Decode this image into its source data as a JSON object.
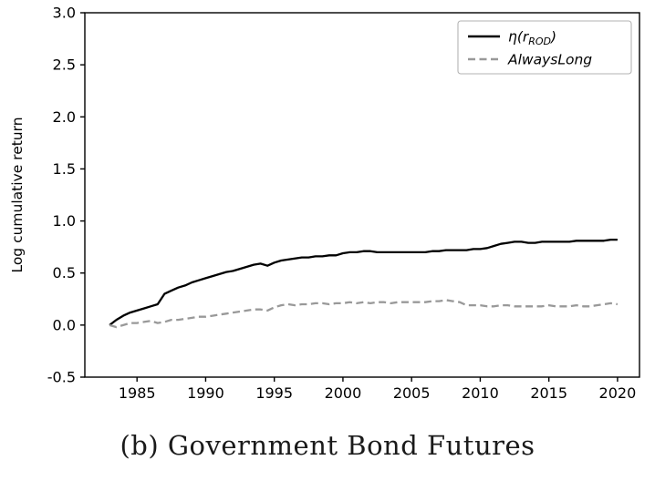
{
  "caption": "(b) Government Bond Futures",
  "chart_data": {
    "type": "line",
    "title": "",
    "xlabel": "",
    "ylabel": "Log cumulative return",
    "xlim": [
      1981.2,
      2021.6
    ],
    "ylim": [
      -0.5,
      3.0
    ],
    "x_ticks": [
      1985,
      1990,
      1995,
      2000,
      2005,
      2010,
      2015,
      2020
    ],
    "y_ticks": [
      -0.5,
      0.0,
      0.5,
      1.0,
      1.5,
      2.0,
      2.5,
      3.0
    ],
    "grid": false,
    "legend_position": "upper right",
    "frame_color": "#000000",
    "x": [
      1983,
      1983.5,
      1984,
      1984.5,
      1985,
      1985.5,
      1986,
      1986.5,
      1987,
      1987.5,
      1988,
      1988.5,
      1989,
      1989.5,
      1990,
      1990.5,
      1991,
      1991.5,
      1992,
      1992.5,
      1993,
      1993.5,
      1994,
      1994.5,
      1995,
      1995.5,
      1996,
      1996.5,
      1997,
      1997.5,
      1998,
      1998.5,
      1999,
      1999.5,
      2000,
      2000.5,
      2001,
      2001.5,
      2002,
      2002.5,
      2003,
      2003.5,
      2004,
      2004.5,
      2005,
      2005.5,
      2006,
      2006.5,
      2007,
      2007.5,
      2008,
      2008.5,
      2009,
      2009.5,
      2010,
      2010.5,
      2011,
      2011.5,
      2012,
      2012.5,
      2013,
      2013.5,
      2014,
      2014.5,
      2015,
      2015.5,
      2016,
      2016.5,
      2017,
      2017.5,
      2018,
      2018.5,
      2019,
      2019.5,
      2020
    ],
    "series": [
      {
        "name": "η(r_ROD)",
        "color": "#000000",
        "style": "solid",
        "values": [
          0.0,
          0.05,
          0.09,
          0.12,
          0.14,
          0.16,
          0.18,
          0.2,
          0.3,
          0.33,
          0.36,
          0.38,
          0.41,
          0.43,
          0.45,
          0.47,
          0.49,
          0.51,
          0.52,
          0.54,
          0.56,
          0.58,
          0.59,
          0.57,
          0.6,
          0.62,
          0.63,
          0.64,
          0.65,
          0.65,
          0.66,
          0.66,
          0.67,
          0.67,
          0.69,
          0.7,
          0.7,
          0.71,
          0.71,
          0.7,
          0.7,
          0.7,
          0.7,
          0.7,
          0.7,
          0.7,
          0.7,
          0.71,
          0.71,
          0.72,
          0.72,
          0.72,
          0.72,
          0.73,
          0.73,
          0.74,
          0.76,
          0.78,
          0.79,
          0.8,
          0.8,
          0.79,
          0.79,
          0.8,
          0.8,
          0.8,
          0.8,
          0.8,
          0.81,
          0.81,
          0.81,
          0.81,
          0.81,
          0.82,
          0.82
        ]
      },
      {
        "name": "AlwaysLong",
        "color": "#999999",
        "style": "dashed",
        "values": [
          0.0,
          -0.02,
          0.0,
          0.02,
          0.02,
          0.03,
          0.04,
          0.02,
          0.03,
          0.05,
          0.05,
          0.06,
          0.07,
          0.08,
          0.08,
          0.09,
          0.1,
          0.11,
          0.12,
          0.13,
          0.14,
          0.15,
          0.15,
          0.14,
          0.17,
          0.19,
          0.2,
          0.19,
          0.2,
          0.2,
          0.21,
          0.21,
          0.2,
          0.21,
          0.21,
          0.22,
          0.21,
          0.22,
          0.21,
          0.22,
          0.22,
          0.21,
          0.22,
          0.22,
          0.22,
          0.22,
          0.22,
          0.23,
          0.23,
          0.24,
          0.23,
          0.22,
          0.19,
          0.19,
          0.19,
          0.18,
          0.18,
          0.19,
          0.19,
          0.18,
          0.18,
          0.18,
          0.18,
          0.18,
          0.19,
          0.18,
          0.18,
          0.18,
          0.19,
          0.18,
          0.18,
          0.19,
          0.2,
          0.21,
          0.2
        ]
      }
    ]
  }
}
